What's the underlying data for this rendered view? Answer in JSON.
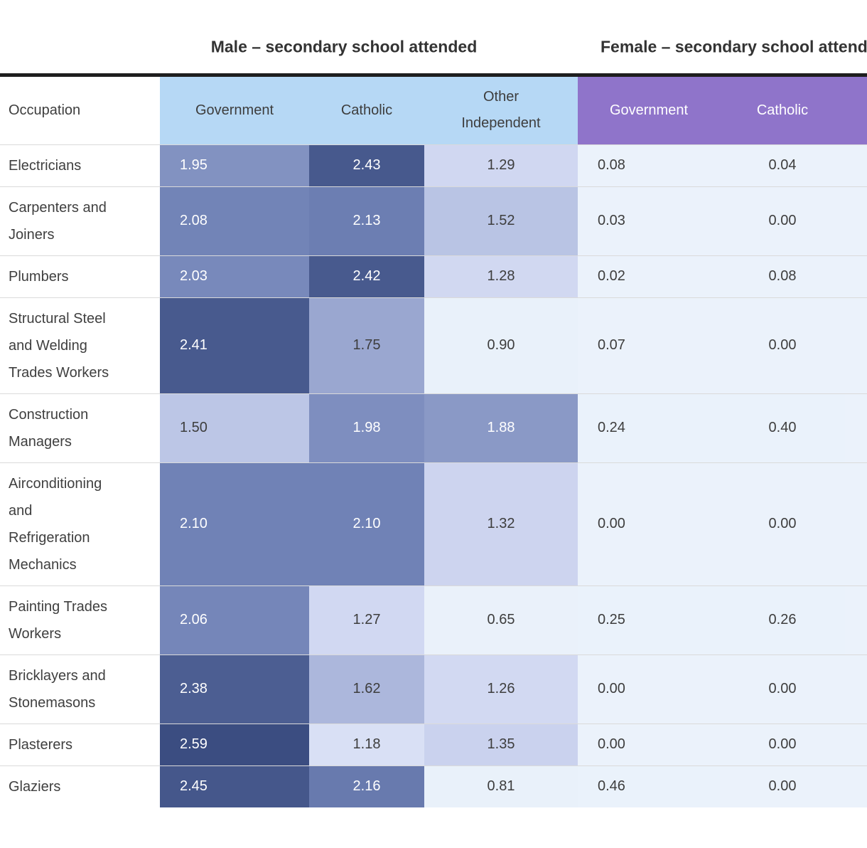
{
  "chart_data": {
    "type": "heatmap",
    "row_header": "Occupation",
    "column_groups": [
      {
        "label": "Male – secondary school attended",
        "columns": [
          0,
          1,
          2
        ]
      },
      {
        "label": "Female – secondary school attended",
        "columns": [
          3,
          4
        ]
      }
    ],
    "columns": [
      {
        "label": "Government",
        "group": "male",
        "align": "left"
      },
      {
        "label": "Catholic",
        "group": "male",
        "align": "center"
      },
      {
        "label": "Other Independent",
        "group": "male",
        "align": "center"
      },
      {
        "label": "Government",
        "group": "female",
        "align": "left"
      },
      {
        "label": "Catholic",
        "group": "female",
        "align": "center"
      }
    ],
    "rows": [
      {
        "occupation": "Electricians",
        "values": [
          1.95,
          2.43,
          1.29,
          0.08,
          0.04
        ]
      },
      {
        "occupation": "Carpenters and Joiners",
        "values": [
          2.08,
          2.13,
          1.52,
          0.03,
          0.0
        ]
      },
      {
        "occupation": "Plumbers",
        "values": [
          2.03,
          2.42,
          1.28,
          0.02,
          0.08
        ]
      },
      {
        "occupation": "Structural Steel and Welding Trades Workers",
        "values": [
          2.41,
          1.75,
          0.9,
          0.07,
          0.0
        ]
      },
      {
        "occupation": "Construction Managers",
        "values": [
          1.5,
          1.98,
          1.88,
          0.24,
          0.4
        ]
      },
      {
        "occupation": "Airconditioning and Refrigeration Mechanics",
        "values": [
          2.1,
          2.1,
          1.32,
          0.0,
          0.0
        ]
      },
      {
        "occupation": "Painting Trades Workers",
        "values": [
          2.06,
          1.27,
          0.65,
          0.25,
          0.26
        ]
      },
      {
        "occupation": "Bricklayers and Stonemasons",
        "values": [
          2.38,
          1.62,
          1.26,
          0.0,
          0.0
        ]
      },
      {
        "occupation": "Plasterers",
        "values": [
          2.59,
          1.18,
          1.35,
          0.0,
          0.0
        ]
      },
      {
        "occupation": "Glaziers",
        "values": [
          2.45,
          2.16,
          0.81,
          0.46,
          0.0
        ]
      }
    ],
    "value_decimals": 2,
    "color_scale": {
      "stops": [
        [
          0.0,
          "#ebf2fb"
        ],
        [
          0.95,
          "#e9f1fa"
        ],
        [
          1.2,
          "#d8def5"
        ],
        [
          1.5,
          "#bcc6e6"
        ],
        [
          1.8,
          "#93a1cc"
        ],
        [
          2.1,
          "#7082b6"
        ],
        [
          2.4,
          "#495b8f"
        ],
        [
          2.6,
          "#3a4c80"
        ]
      ],
      "white_text_threshold": 1.8,
      "dark_text_color": "#3d3d3d",
      "light_text_color": "#ffffff"
    },
    "colors": {
      "male_header_bg": "#b6d8f5",
      "male_header_text": "#3d3d3d",
      "female_header_bg": "#8f74ca",
      "female_header_text": "#ffffff",
      "rule_color": "#1e1e1e",
      "row_border_color": "#dadada",
      "title_text_color": "#333333"
    }
  }
}
